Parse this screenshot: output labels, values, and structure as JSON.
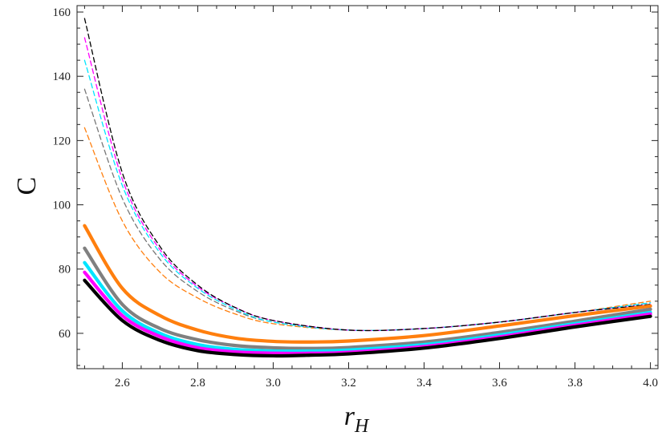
{
  "chart_data": {
    "type": "line",
    "title": "",
    "xlabel": "r",
    "xlabel_sub": "H",
    "ylabel": "C",
    "xlim": [
      2.48,
      4.02
    ],
    "ylim": [
      49,
      162
    ],
    "x_ticks": [
      2.6,
      2.8,
      3.0,
      3.2,
      3.4,
      3.6,
      3.8,
      4.0
    ],
    "x_tick_labels": [
      "2.6",
      "2.8",
      "3.0",
      "3.2",
      "3.4",
      "3.6",
      "3.8",
      "4.0"
    ],
    "y_ticks": [
      60,
      80,
      100,
      120,
      140,
      160
    ],
    "y_tick_labels": [
      "60",
      "80",
      "100",
      "120",
      "140",
      "160"
    ],
    "grid": false,
    "legend": "none",
    "series": [
      {
        "style": "dashed",
        "color": "#ff7f0e",
        "x": [
          2.5,
          2.6,
          2.7,
          2.8,
          2.9,
          3.0,
          3.2,
          3.4,
          3.6,
          3.8,
          4.0
        ],
        "y": [
          124,
          95,
          79,
          71,
          66,
          63,
          61,
          61.5,
          63.5,
          66.5,
          70
        ]
      },
      {
        "style": "dashed",
        "color": "#777777",
        "x": [
          2.5,
          2.6,
          2.7,
          2.8,
          2.9,
          3.0,
          3.2,
          3.4,
          3.6,
          3.8,
          4.0
        ],
        "y": [
          136,
          102,
          83,
          73,
          67,
          63.5,
          61,
          61.5,
          63.5,
          66.5,
          69.5
        ]
      },
      {
        "style": "dashed",
        "color": "#00e5ff",
        "x": [
          2.5,
          2.6,
          2.7,
          2.8,
          2.9,
          3.0,
          3.2,
          3.4,
          3.6,
          3.8,
          4.0
        ],
        "y": [
          145,
          106,
          85,
          74,
          67.5,
          63.5,
          61,
          61.5,
          63.5,
          66.5,
          69.5
        ]
      },
      {
        "style": "dashed",
        "color": "#ff00ff",
        "x": [
          2.5,
          2.6,
          2.7,
          2.8,
          2.9,
          3.0,
          3.2,
          3.4,
          3.6,
          3.8,
          4.0
        ],
        "y": [
          152,
          108,
          86,
          74.5,
          68,
          64,
          61,
          61.5,
          63.5,
          66.5,
          69
        ]
      },
      {
        "style": "dashed",
        "color": "#000000",
        "x": [
          2.5,
          2.6,
          2.7,
          2.8,
          2.9,
          3.0,
          3.2,
          3.4,
          3.6,
          3.8,
          4.0
        ],
        "y": [
          158,
          110,
          87,
          75,
          68,
          64,
          61,
          61.5,
          63.5,
          66.5,
          69
        ]
      },
      {
        "style": "solid",
        "color": "#ff7f0e",
        "x": [
          2.5,
          2.6,
          2.7,
          2.8,
          2.9,
          3.0,
          3.1,
          3.2,
          3.4,
          3.6,
          3.8,
          4.0
        ],
        "y": [
          93.5,
          74,
          65.5,
          61,
          58.5,
          57.5,
          57.3,
          57.6,
          59.3,
          62.3,
          65.5,
          68.5
        ]
      },
      {
        "style": "solid",
        "color": "#808080",
        "x": [
          2.5,
          2.6,
          2.7,
          2.8,
          2.9,
          3.0,
          3.1,
          3.2,
          3.4,
          3.6,
          3.8,
          4.0
        ],
        "y": [
          86.5,
          69,
          61.5,
          58,
          56.2,
          55.5,
          55.3,
          55.6,
          57.3,
          60.3,
          63.8,
          67.5
        ]
      },
      {
        "style": "solid",
        "color": "#00e5ff",
        "x": [
          2.5,
          2.6,
          2.7,
          2.8,
          2.9,
          3.0,
          3.1,
          3.2,
          3.4,
          3.6,
          3.8,
          4.0
        ],
        "y": [
          82,
          67,
          60,
          56.5,
          55,
          54.5,
          54.5,
          54.8,
          56.5,
          59.5,
          63,
          66.5
        ]
      },
      {
        "style": "solid",
        "color": "#ff00ff",
        "x": [
          2.5,
          2.6,
          2.7,
          2.8,
          2.9,
          3.0,
          3.1,
          3.2,
          3.4,
          3.6,
          3.8,
          4.0
        ],
        "y": [
          79,
          65.5,
          59,
          55.5,
          54.2,
          53.8,
          53.8,
          54.1,
          55.9,
          58.9,
          62.5,
          66
        ]
      },
      {
        "style": "solid",
        "color": "#000000",
        "x": [
          2.5,
          2.6,
          2.7,
          2.8,
          2.9,
          3.0,
          3.1,
          3.2,
          3.4,
          3.6,
          3.8,
          4.0
        ],
        "y": [
          76.5,
          64,
          57.8,
          54.6,
          53.4,
          53,
          53.2,
          53.6,
          55.4,
          58.4,
          62,
          65.3
        ]
      }
    ]
  }
}
